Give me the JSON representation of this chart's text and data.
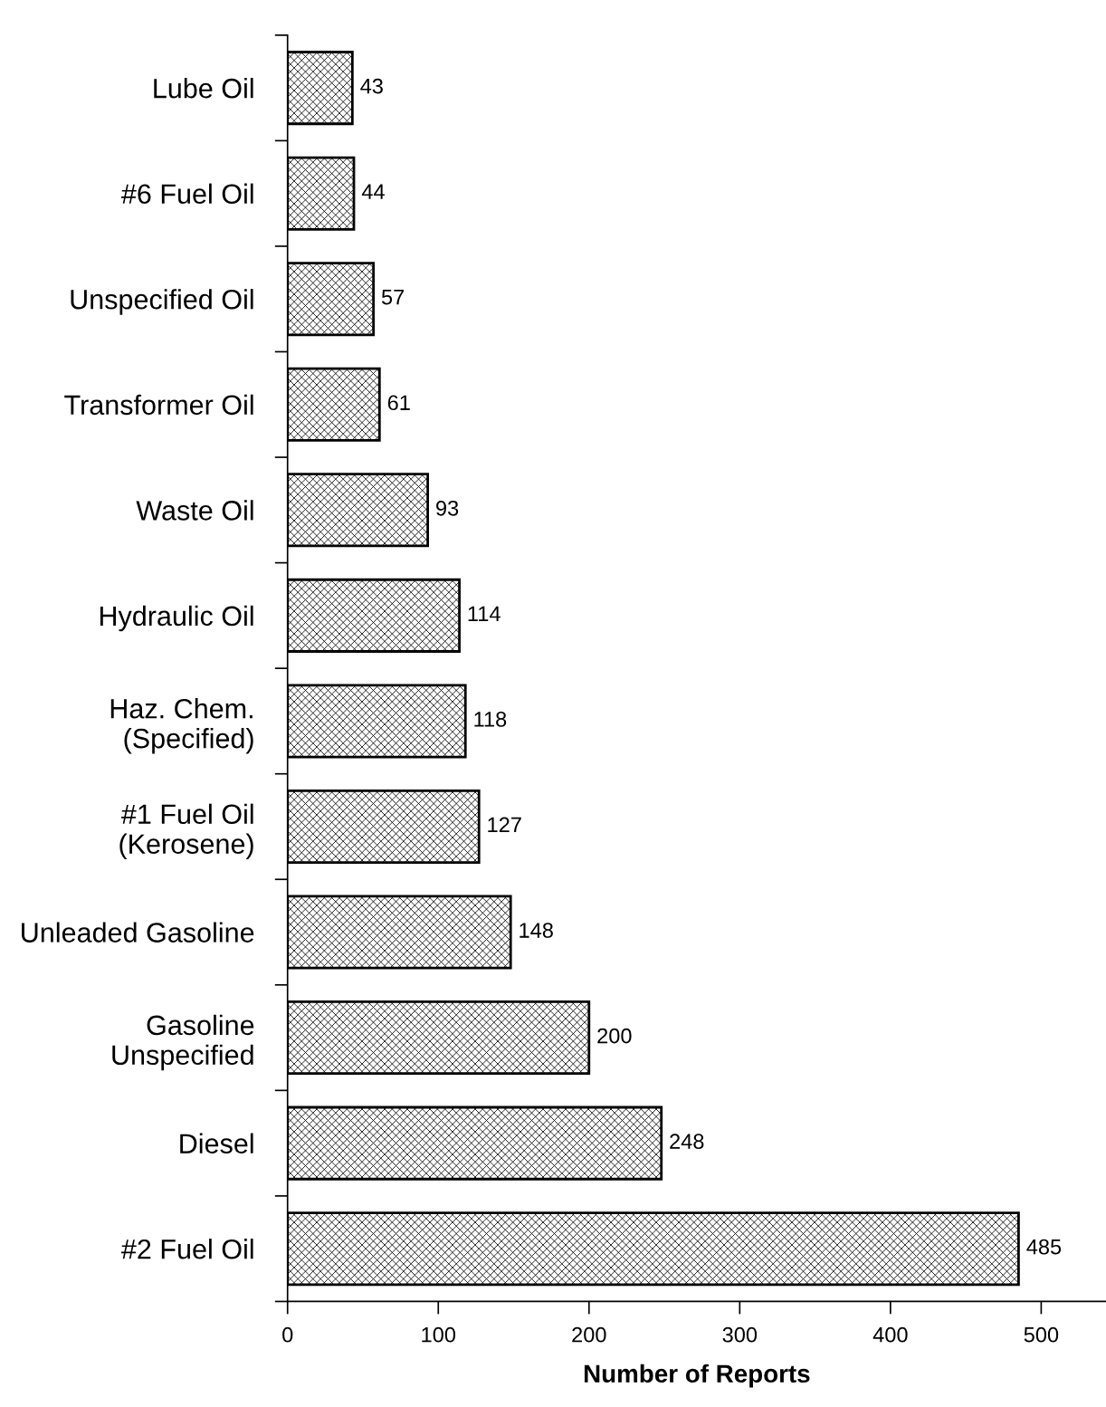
{
  "chart_data": {
    "type": "bar",
    "orientation": "horizontal",
    "xlabel": "Number of Reports",
    "categories": [
      "Lube Oil",
      "#6 Fuel Oil",
      "Unspecified Oil",
      "Transformer Oil",
      "Waste Oil",
      "Hydraulic Oil",
      "Haz. Chem.\n(Specified)",
      "#1 Fuel Oil\n(Kerosene)",
      "Unleaded Gasoline",
      "Gasoline\nUnspecified",
      "Diesel",
      "#2 Fuel Oil"
    ],
    "values": [
      43,
      44,
      57,
      61,
      93,
      114,
      118,
      127,
      148,
      200,
      248,
      485
    ],
    "color": "#000000",
    "data_labels": true,
    "xlim": [
      0,
      543
    ],
    "xticks": [
      0,
      100,
      200,
      300,
      400,
      500
    ],
    "grid": false,
    "legend": false
  }
}
